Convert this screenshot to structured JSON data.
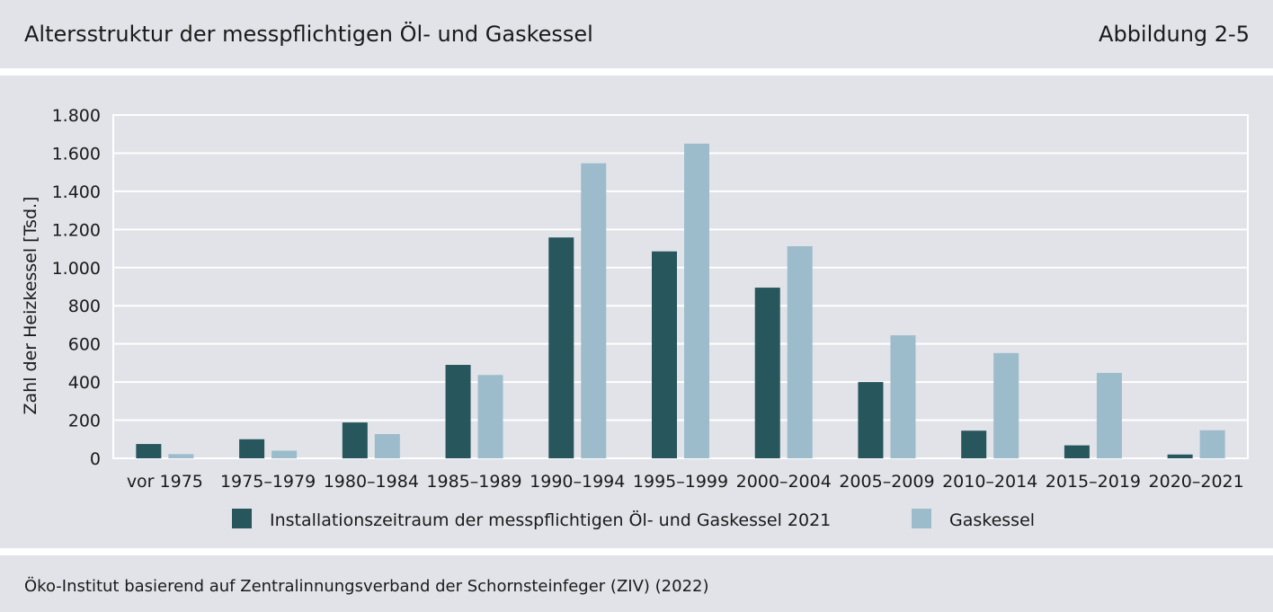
{
  "header": {
    "title": "Altersstruktur der messpflichtigen Öl- und Gaskessel",
    "figure_number": "Abbildung 2-5"
  },
  "footer": {
    "source": "Öko-Institut basierend auf Zentralinnungsverband der Schornsteinfeger (ZIV) (2022)"
  },
  "colors": {
    "background": "#e1e3e8",
    "series_dark": "#27565d",
    "series_light": "#9cbccc",
    "grid": "#ffffff"
  },
  "chart_data": {
    "type": "bar",
    "title": "",
    "xlabel": "",
    "ylabel": "Zahl der Heizkessel [Tsd.]",
    "ylim": [
      0,
      1800
    ],
    "yticks": [
      0,
      200,
      400,
      600,
      800,
      1000,
      1200,
      1400,
      1600,
      1800
    ],
    "ytick_labels": [
      "0",
      "200",
      "400",
      "600",
      "800",
      "1.000",
      "1.200",
      "1.400",
      "1.600",
      "1.800"
    ],
    "grid": true,
    "legend_position": "bottom",
    "categories": [
      "vor 1975",
      "1975–1979",
      "1980–1984",
      "1985–1989",
      "1990–1994",
      "1995–1999",
      "2000–2004",
      "2005–2009",
      "2010–2014",
      "2015–2019",
      "2020–2021"
    ],
    "series": [
      {
        "name": "Installationszeitraum der messpflichtigen Öl- und Gaskessel 2021",
        "color": "#27565d",
        "values": [
          75,
          100,
          188,
          490,
          1158,
          1085,
          895,
          400,
          145,
          68,
          20
        ]
      },
      {
        "name": "Gaskessel",
        "color": "#9cbccc",
        "values": [
          22,
          40,
          127,
          437,
          1547,
          1650,
          1112,
          645,
          552,
          448,
          147
        ]
      }
    ]
  }
}
